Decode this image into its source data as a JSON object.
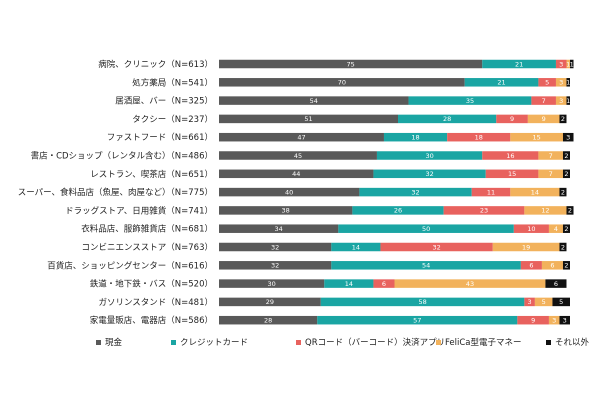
{
  "chart_data": {
    "type": "bar",
    "orientation": "horizontal",
    "stacked": true,
    "xlim": [
      0,
      100
    ],
    "grid": false,
    "legend_position": "bottom",
    "categories": [
      "病院、クリニック（N=613）",
      "処方薬局（N=541）",
      "居酒屋、バー（N=325）",
      "タクシー（N=237）",
      "ファストフード（N=661）",
      "書店・CDショップ（レンタル含む）（N=486）",
      "レストラン、喫茶店（N=651）",
      "スーパー、食料品店（魚屋、肉屋など）（N=775）",
      "ドラッグストア、日用雑貨（N=741）",
      "衣料品店、服飾雑貨店（N=681）",
      "コンビニエンスストア（N=763）",
      "百貨店、ショッピングセンター（N=616）",
      "鉄道・地下鉄・バス（N=520）",
      "ガソリンスタンド（N=481）",
      "家電量販店、電器店（N=586）"
    ],
    "series": [
      {
        "name": "現金",
        "color": "#595959",
        "values": [
          75,
          70,
          54,
          51,
          47,
          45,
          44,
          40,
          38,
          34,
          32,
          32,
          30,
          29,
          28
        ]
      },
      {
        "name": "クレジットカード",
        "color": "#1aa5a3",
        "values": [
          21,
          21,
          35,
          28,
          18,
          30,
          32,
          32,
          26,
          50,
          14,
          54,
          14,
          58,
          57
        ]
      },
      {
        "name": "QRコード（バーコード）決済アプリ",
        "color": "#e8625e",
        "values": [
          3,
          5,
          7,
          9,
          18,
          16,
          15,
          11,
          23,
          10,
          32,
          6,
          6,
          3,
          9
        ]
      },
      {
        "name": "FeliCa型電子マネー",
        "color": "#f2b25c",
        "values": [
          1,
          3,
          3,
          9,
          15,
          7,
          7,
          14,
          12,
          4,
          19,
          6,
          43,
          5,
          3
        ]
      },
      {
        "name": "それ以外",
        "color": "#111111",
        "values": [
          1,
          1,
          1,
          2,
          3,
          2,
          2,
          2,
          2,
          2,
          2,
          2,
          6,
          5,
          3
        ]
      }
    ]
  }
}
